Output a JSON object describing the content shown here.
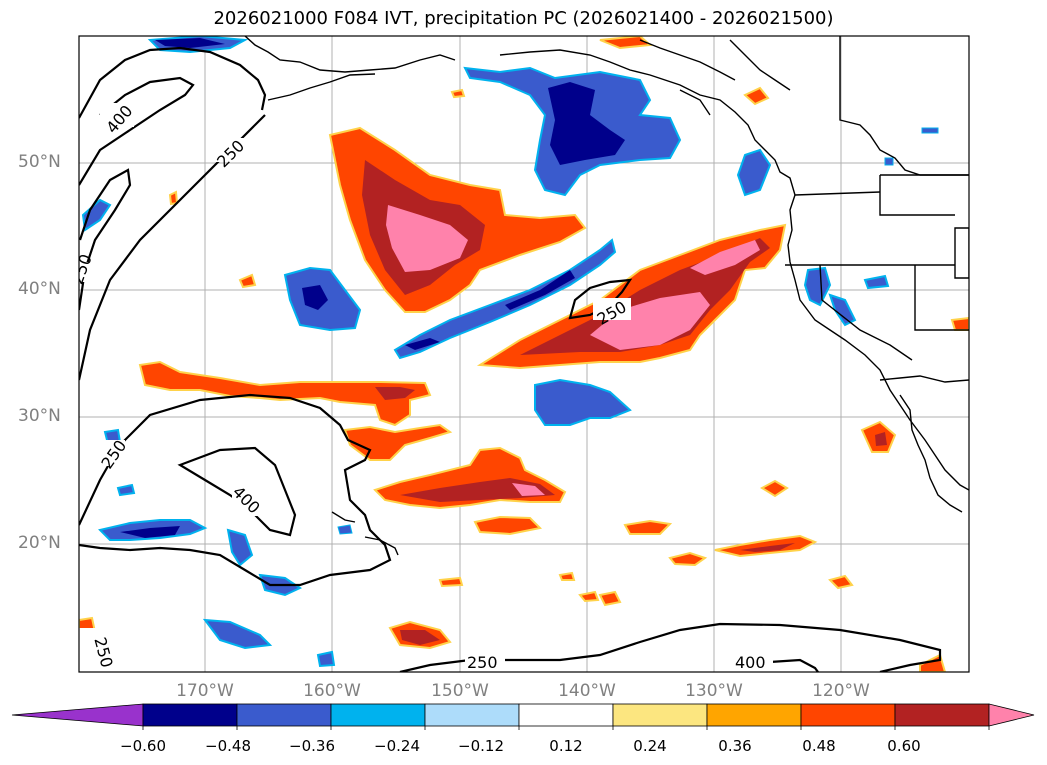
{
  "title": "2026021000 F084 IVT, precipitation PC (2026021400 - 2026021500)",
  "lat_labels": [
    "50°N",
    "40°N",
    "30°N",
    "20°N"
  ],
  "lon_labels": [
    "170°W",
    "160°W",
    "150°W",
    "140°W",
    "130°W",
    "120°W"
  ],
  "contour_labels": [
    "400",
    "250",
    "250",
    "250",
    "400",
    "250",
    "250",
    "400"
  ],
  "colorbar": {
    "tick_labels": [
      "−0.60",
      "−0.48",
      "−0.36",
      "−0.24",
      "−0.12",
      "0.12",
      "0.24",
      "0.36",
      "0.48",
      "0.60"
    ],
    "colors": [
      "#9932CC",
      "#00008B",
      "#3A5BCD",
      "#00B2EE",
      "#ADDCFA",
      "#FFFFFF",
      "#FCE680",
      "#FFA500",
      "#FF4500",
      "#B22222",
      "#FF82AB"
    ]
  }
}
